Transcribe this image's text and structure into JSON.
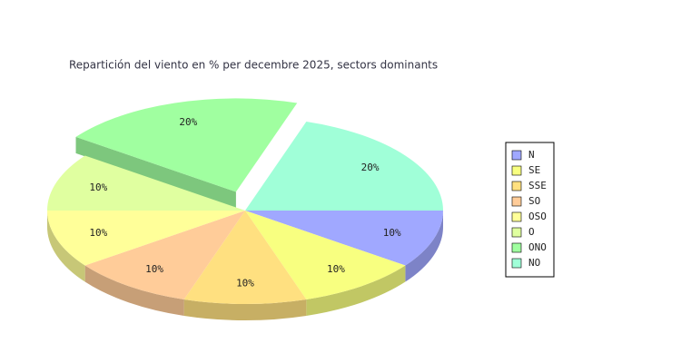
{
  "chart_data": {
    "type": "pie3d",
    "title": "Repartición del viento en % per decembre 2025, sectors dominants",
    "categories": [
      "N",
      "SE",
      "SSE",
      "SO",
      "OSO",
      "O",
      "ONO",
      "NO"
    ],
    "values": [
      10,
      10,
      10,
      10,
      10,
      10,
      20,
      20
    ],
    "value_labels": [
      "10%",
      "10%",
      "10%",
      "10%",
      "10%",
      "10%",
      "20%",
      "20%"
    ],
    "colors": [
      "#a0a8ff",
      "#f8ff80",
      "#ffe080",
      "#ffcc99",
      "#ffff99",
      "#e0ffa0",
      "#a0ffa0",
      "#a0ffd8"
    ],
    "explode": [
      0,
      0,
      0,
      0,
      0,
      0,
      0.15,
      0
    ],
    "legend": "right"
  }
}
